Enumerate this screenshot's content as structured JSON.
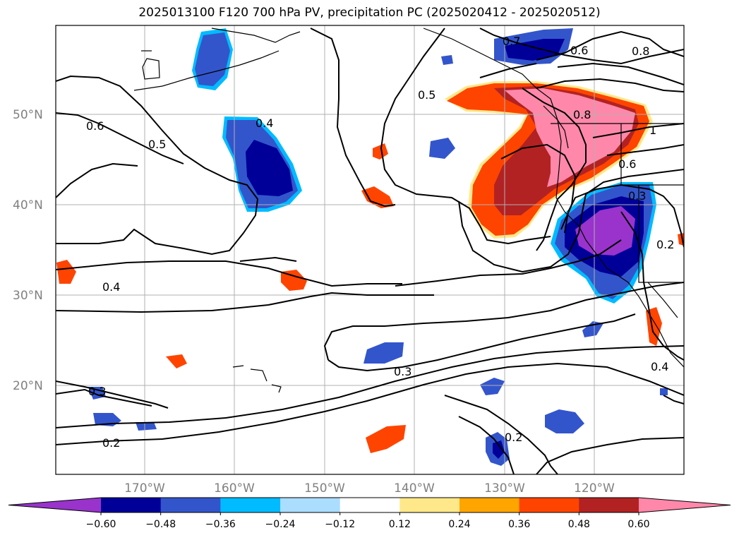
{
  "title": "2025013100 F120 700 hPa PV, precipitation PC (2025020412 - 2025020512)",
  "map": {
    "lat_labels": [
      "50°N",
      "40°N",
      "30°N",
      "20°N"
    ],
    "lon_labels": [
      "170°W",
      "160°W",
      "150°W",
      "140°W",
      "130°W",
      "120°W"
    ]
  },
  "contour_labels": [
    "0.7",
    "0.6",
    "0.8",
    "0.5",
    "0.8",
    "1",
    "0.6",
    "0.4",
    "0.6",
    "0.5",
    "0.3",
    "0.4",
    "0.2",
    "0.3",
    "0.4",
    "0.3",
    "0.2",
    "0.2"
  ],
  "colorbar": {
    "ticks": [
      "−0.60",
      "−0.48",
      "−0.36",
      "−0.24",
      "−0.12",
      "0.12",
      "0.24",
      "0.36",
      "0.48",
      "0.60"
    ],
    "colors": [
      "#9933cc",
      "#000099",
      "#3355cc",
      "#00bbff",
      "#aaddff",
      "#ffffff",
      "#ffe88a",
      "#ffa500",
      "#ff4400",
      "#b22222",
      "#ff88aa"
    ]
  }
}
